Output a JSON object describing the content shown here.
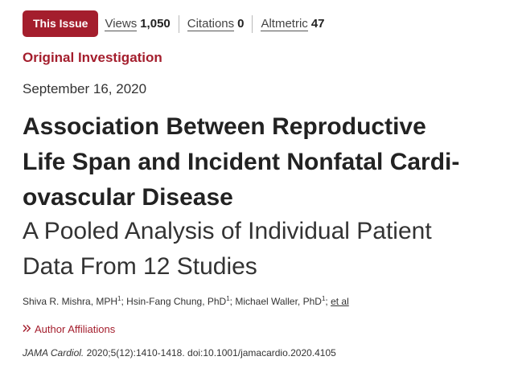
{
  "metrics": {
    "issue_label": "This Issue",
    "views_label": "Views",
    "views_value": "1,050",
    "citations_label": "Citations",
    "citations_value": "0",
    "altmetric_label": "Altmetric",
    "altmetric_value": "47"
  },
  "article": {
    "type": "Original Investigation",
    "date": "September 16, 2020",
    "title_lines": [
      "Association Between Reproductive",
      "Life Span and Incident Nonfatal Cardi-",
      "ovascular Disease"
    ],
    "subtitle_lines": [
      "A Pooled Analysis of Individual Patient",
      "Data From 12 Studies"
    ]
  },
  "authors": {
    "list": [
      {
        "name": "Shiva R. Mishra, MPH",
        "sup": "1"
      },
      {
        "name": "Hsin-Fang Chung, PhD",
        "sup": "1"
      },
      {
        "name": "Michael Waller, PhD",
        "sup": "1"
      }
    ],
    "separator": "; ",
    "et_al": "et al"
  },
  "affiliations": {
    "label": "Author Affiliations",
    "icon": "double-chevron-right-icon"
  },
  "citation": {
    "journal": "JAMA Cardiol.",
    "details": " 2020;5(12):1410-1418. doi:10.1001/jamacardio.2020.4105"
  },
  "colors": {
    "accent": "#a41e2d",
    "text": "#222222"
  }
}
